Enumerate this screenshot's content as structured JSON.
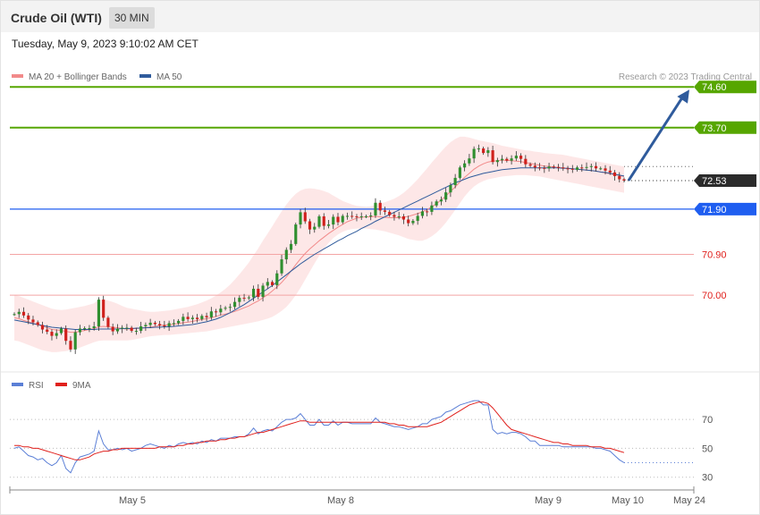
{
  "header": {
    "title": "Crude Oil (WTI)",
    "timeframe": "30 MIN",
    "timestamp": "Tuesday, May 9, 2023 9:10:02 AM CET",
    "credit": "Research © 2023 Trading Central"
  },
  "legend": {
    "price": [
      {
        "label": "MA 20 + Bollinger Bands",
        "color": "#f28a8a"
      },
      {
        "label": "MA 50",
        "color": "#2f5b9c"
      }
    ],
    "rsi": [
      {
        "label": "RSI",
        "color": "#5b7fd6"
      },
      {
        "label": "9MA",
        "color": "#e0201c"
      }
    ]
  },
  "chart_data": [
    {
      "type": "candlestick",
      "ylim": [
        68.5,
        74.9
      ],
      "x_ticks": [
        "May 5",
        "May 8",
        "May 9",
        "May 10",
        "May 24"
      ],
      "last_price": {
        "value": 72.53,
        "label": "72.53"
      },
      "levels": [
        {
          "value": 74.6,
          "label": "74.60",
          "kind": "resistance",
          "color": "#56a600"
        },
        {
          "value": 73.7,
          "label": "73.70",
          "kind": "resistance",
          "color": "#56a600"
        },
        {
          "value": 71.9,
          "label": "71.90",
          "kind": "pivot",
          "color": "#1f5ef0"
        },
        {
          "value": 70.9,
          "label": "70.90",
          "kind": "support",
          "color": "#e0201c"
        },
        {
          "value": 70.0,
          "label": "70.00",
          "kind": "support",
          "color": "#e0201c"
        }
      ],
      "forecast_arrow": {
        "from": 72.53,
        "to": 74.6,
        "color": "#2f5b9c"
      },
      "closes": [
        69.58,
        69.63,
        69.55,
        69.46,
        69.4,
        69.34,
        69.24,
        69.19,
        69.1,
        69.16,
        69.26,
        68.99,
        68.8,
        69.18,
        69.26,
        69.27,
        69.27,
        69.31,
        69.9,
        69.5,
        69.3,
        69.2,
        69.26,
        69.28,
        69.28,
        69.21,
        69.21,
        69.31,
        69.34,
        69.39,
        69.36,
        69.33,
        69.31,
        69.38,
        69.38,
        69.43,
        69.52,
        69.47,
        69.5,
        69.47,
        69.54,
        69.51,
        69.64,
        69.62,
        69.7,
        69.72,
        69.74,
        69.85,
        69.94,
        69.93,
        69.95,
        70.14,
        69.96,
        70.21,
        70.29,
        70.22,
        70.48,
        70.79,
        71.0,
        71.13,
        71.56,
        71.83,
        71.63,
        71.45,
        71.51,
        71.74,
        71.53,
        71.56,
        71.73,
        71.61,
        71.75,
        71.75,
        71.74,
        71.73,
        71.74,
        71.74,
        71.76,
        72.04,
        71.87,
        71.84,
        71.77,
        71.73,
        71.74,
        71.67,
        71.59,
        71.64,
        71.75,
        71.85,
        71.84,
        71.98,
        72.07,
        72.11,
        72.27,
        72.43,
        72.59,
        72.82,
        72.91,
        73.02,
        73.23,
        73.24,
        73.14,
        73.2,
        72.94,
        72.98,
        73.01,
        72.97,
        73.02,
        73.08,
        73.01,
        72.89,
        72.86,
        72.82,
        72.81,
        72.8,
        72.84,
        72.83,
        72.82,
        72.8,
        72.79,
        72.77,
        72.82,
        72.81,
        72.83,
        72.85,
        72.8,
        72.8,
        72.75,
        72.71,
        72.63,
        72.56,
        72.53
      ],
      "ma20": [
        69.5,
        69.48,
        69.44,
        69.41,
        69.38,
        69.35,
        69.31,
        69.28,
        69.24,
        69.23,
        69.22,
        69.2,
        69.18,
        69.18,
        69.2,
        69.22,
        69.24,
        69.26,
        69.3,
        69.31,
        69.3,
        69.29,
        69.28,
        69.26,
        69.25,
        69.26,
        69.26,
        69.27,
        69.28,
        69.29,
        69.31,
        69.33,
        69.34,
        69.34,
        69.36,
        69.37,
        69.39,
        69.4,
        69.42,
        69.44,
        69.46,
        69.48,
        69.5,
        69.53,
        69.56,
        69.58,
        69.61,
        69.64,
        69.68,
        69.72,
        69.76,
        69.82,
        69.87,
        69.94,
        70.01,
        70.09,
        70.18,
        70.28,
        70.4,
        70.53,
        70.67,
        70.8,
        70.92,
        71.02,
        71.11,
        71.2,
        71.28,
        71.36,
        71.43,
        71.5,
        71.56,
        71.62,
        71.66,
        71.7,
        71.72,
        71.73,
        71.73,
        71.74,
        71.73,
        71.72,
        71.71,
        71.71,
        71.71,
        71.72,
        71.74,
        71.77,
        71.8,
        71.84,
        71.89,
        71.95,
        72.02,
        72.1,
        72.19,
        72.29,
        72.39,
        72.5,
        72.6,
        72.69,
        72.78,
        72.85,
        72.9,
        72.94,
        72.96,
        72.97,
        72.98,
        72.98,
        72.97,
        72.96,
        72.95,
        72.93,
        72.91,
        72.89,
        72.87,
        72.85,
        72.84,
        72.83,
        72.82,
        72.81,
        72.8,
        72.79,
        72.78,
        72.77,
        72.76,
        72.75,
        72.74,
        72.72,
        72.7,
        72.68,
        72.66,
        72.64,
        72.62
      ],
      "bb_upper": [
        70.0,
        69.98,
        69.94,
        69.9,
        69.86,
        69.82,
        69.78,
        69.74,
        69.7,
        69.68,
        69.67,
        69.68,
        69.7,
        69.72,
        69.74,
        69.76,
        69.79,
        69.82,
        69.9,
        69.9,
        69.88,
        69.85,
        69.81,
        69.76,
        69.72,
        69.7,
        69.68,
        69.66,
        69.64,
        69.63,
        69.63,
        69.64,
        69.65,
        69.66,
        69.68,
        69.7,
        69.72,
        69.74,
        69.77,
        69.8,
        69.84,
        69.88,
        69.93,
        69.99,
        70.06,
        70.14,
        70.23,
        70.34,
        70.46,
        70.59,
        70.72,
        70.88,
        71.03,
        71.2,
        71.36,
        71.52,
        71.69,
        71.85,
        72.0,
        72.13,
        72.24,
        72.31,
        72.35,
        72.36,
        72.35,
        72.33,
        72.3,
        72.26,
        72.2,
        72.14,
        72.08,
        72.04,
        72.0,
        71.97,
        71.96,
        71.95,
        71.96,
        72.0,
        72.02,
        72.05,
        72.09,
        72.13,
        72.19,
        72.26,
        72.35,
        72.45,
        72.56,
        72.68,
        72.8,
        72.93,
        73.05,
        73.17,
        73.28,
        73.38,
        73.45,
        73.5,
        73.5,
        73.48,
        73.45,
        73.42,
        73.4,
        73.38,
        73.36,
        73.33,
        73.3,
        73.28,
        73.26,
        73.24,
        73.22,
        73.2,
        73.19,
        73.17,
        73.16,
        73.14,
        73.13,
        73.12,
        73.11,
        73.1,
        73.08,
        73.06,
        73.04,
        73.02,
        73.0,
        72.98,
        72.96,
        72.94,
        72.92,
        72.9,
        72.88,
        72.86,
        72.84
      ],
      "bb_lower": [
        69.0,
        68.98,
        68.94,
        68.9,
        68.86,
        68.82,
        68.78,
        68.76,
        68.74,
        68.74,
        68.75,
        68.76,
        68.78,
        68.8,
        68.84,
        68.88,
        68.92,
        68.96,
        68.99,
        69.0,
        69.0,
        69.0,
        69.0,
        69.0,
        69.0,
        69.01,
        69.03,
        69.05,
        69.07,
        69.09,
        69.1,
        69.11,
        69.12,
        69.12,
        69.13,
        69.14,
        69.15,
        69.16,
        69.17,
        69.18,
        69.19,
        69.2,
        69.22,
        69.24,
        69.26,
        69.28,
        69.3,
        69.32,
        69.34,
        69.36,
        69.38,
        69.4,
        69.42,
        69.45,
        69.48,
        69.52,
        69.58,
        69.65,
        69.74,
        69.86,
        70.0,
        70.16,
        70.34,
        70.52,
        70.7,
        70.87,
        71.02,
        71.15,
        71.26,
        71.34,
        71.4,
        71.44,
        71.46,
        71.47,
        71.47,
        71.47,
        71.46,
        71.45,
        71.43,
        71.41,
        71.38,
        71.35,
        71.32,
        71.28,
        71.24,
        71.22,
        71.2,
        71.2,
        71.24,
        71.3,
        71.38,
        71.48,
        71.6,
        71.74,
        71.88,
        72.03,
        72.18,
        72.3,
        72.4,
        72.47,
        72.52,
        72.56,
        72.58,
        72.6,
        72.62,
        72.63,
        72.64,
        72.65,
        72.65,
        72.65,
        72.64,
        72.63,
        72.62,
        72.6,
        72.58,
        72.56,
        72.54,
        72.52,
        72.5,
        72.48,
        72.46,
        72.44,
        72.42,
        72.4,
        72.38,
        72.36,
        72.34,
        72.32,
        72.3,
        72.28,
        72.26
      ],
      "ma50": [
        69.45,
        69.43,
        69.41,
        69.39,
        69.37,
        69.35,
        69.33,
        69.31,
        69.29,
        69.28,
        69.27,
        69.26,
        69.25,
        69.24,
        69.24,
        69.24,
        69.24,
        69.24,
        69.25,
        69.25,
        69.25,
        69.25,
        69.25,
        69.26,
        69.26,
        69.26,
        69.27,
        69.27,
        69.28,
        69.28,
        69.29,
        69.29,
        69.3,
        69.3,
        69.31,
        69.32,
        69.33,
        69.34,
        69.35,
        69.37,
        69.39,
        69.41,
        69.44,
        69.47,
        69.51,
        69.56,
        69.61,
        69.67,
        69.73,
        69.79,
        69.86,
        69.93,
        70.0,
        70.07,
        70.14,
        70.21,
        70.29,
        70.37,
        70.45,
        70.53,
        70.61,
        70.69,
        70.76,
        70.83,
        70.9,
        70.96,
        71.02,
        71.08,
        71.14,
        71.2,
        71.25,
        71.31,
        71.36,
        71.41,
        71.47,
        71.52,
        71.57,
        71.63,
        71.68,
        71.73,
        71.78,
        71.83,
        71.88,
        71.93,
        71.98,
        72.03,
        72.08,
        72.13,
        72.18,
        72.23,
        72.28,
        72.33,
        72.38,
        72.43,
        72.48,
        72.52,
        72.56,
        72.6,
        72.63,
        72.66,
        72.69,
        72.71,
        72.73,
        72.75,
        72.77,
        72.78,
        72.79,
        72.8,
        72.81,
        72.81,
        72.81,
        72.81,
        72.81,
        72.81,
        72.81,
        72.81,
        72.81,
        72.8,
        72.8,
        72.79,
        72.78,
        72.77,
        72.76,
        72.75,
        72.74,
        72.72,
        72.71,
        72.69,
        72.67,
        72.65,
        72.63
      ]
    },
    {
      "type": "line",
      "ylim": [
        23,
        88
      ],
      "y_ticks": [
        30,
        50,
        70
      ],
      "series": [
        {
          "name": "RSI",
          "color": "#5b7fd6",
          "values": [
            50,
            51,
            48,
            45,
            44,
            42,
            43,
            40,
            38,
            40,
            45,
            36,
            33,
            40,
            44,
            45,
            46,
            48,
            62,
            53,
            49,
            49,
            50,
            49,
            50,
            48,
            49,
            50,
            52,
            53,
            52,
            51,
            50,
            52,
            51,
            53,
            54,
            53,
            54,
            53,
            55,
            54,
            56,
            55,
            57,
            57,
            57,
            58,
            58,
            58,
            60,
            64,
            60,
            62,
            63,
            62,
            65,
            68,
            70,
            70,
            71,
            74,
            70,
            66,
            66,
            70,
            66,
            66,
            69,
            66,
            68,
            68,
            67,
            67,
            67,
            67,
            67,
            71,
            68,
            67,
            66,
            65,
            65,
            64,
            63,
            64,
            65,
            67,
            67,
            70,
            71,
            72,
            75,
            76,
            78,
            80,
            81,
            82,
            83,
            83,
            80,
            80,
            63,
            60,
            61,
            60,
            61,
            61,
            60,
            58,
            55,
            55,
            52,
            52,
            52,
            52,
            52,
            51,
            51,
            51,
            51,
            51,
            51,
            51,
            50,
            50,
            49,
            48,
            45,
            42,
            40
          ]
        },
        {
          "name": "9MA",
          "color": "#e0201c",
          "values": [
            52,
            52,
            51,
            51,
            50,
            50,
            49,
            48,
            47,
            46,
            45,
            44,
            43,
            42,
            42,
            43,
            44,
            46,
            47,
            48,
            48,
            49,
            49,
            50,
            50,
            50,
            50,
            50,
            50,
            50,
            50,
            51,
            51,
            51,
            51,
            52,
            52,
            53,
            53,
            54,
            54,
            55,
            55,
            55,
            56,
            56,
            57,
            57,
            58,
            58,
            59,
            60,
            61,
            61,
            62,
            63,
            64,
            65,
            66,
            67,
            68,
            69,
            69,
            68,
            68,
            68,
            68,
            68,
            68,
            68,
            68,
            68,
            68,
            68,
            68,
            68,
            68,
            68,
            68,
            68,
            67,
            67,
            66,
            66,
            65,
            65,
            65,
            65,
            65,
            66,
            67,
            68,
            70,
            72,
            74,
            76,
            78,
            80,
            81,
            82,
            82,
            81,
            78,
            74,
            70,
            66,
            63,
            62,
            61,
            60,
            59,
            58,
            57,
            56,
            55,
            54,
            54,
            53,
            53,
            52,
            52,
            52,
            52,
            51,
            51,
            51,
            50,
            50,
            49,
            48,
            47
          ]
        }
      ],
      "x_ticks": [
        "May 5",
        "May 8",
        "May 9",
        "May 10",
        "May 24"
      ]
    }
  ]
}
